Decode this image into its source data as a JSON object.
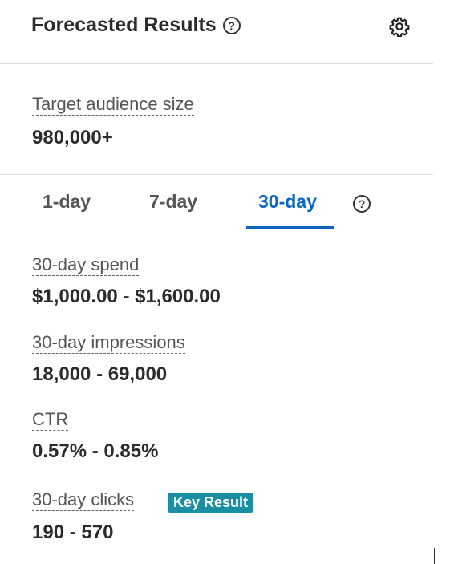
{
  "header": {
    "title": "Forecasted Results"
  },
  "audience": {
    "label": "Target audience size",
    "value": "980,000+"
  },
  "tabs": [
    {
      "label": "1-day",
      "active": false
    },
    {
      "label": "7-day",
      "active": false
    },
    {
      "label": "30-day",
      "active": true
    }
  ],
  "metrics": {
    "spend": {
      "label": "30-day spend",
      "value": "$1,000.00 - $1,600.00"
    },
    "impressions": {
      "label": "30-day impressions",
      "value": "18,000 - 69,000"
    },
    "ctr": {
      "label": "CTR",
      "value": "0.57% - 0.85%"
    },
    "clicks": {
      "label": "30-day clicks",
      "value": "190 - 570",
      "badge": "Key Result"
    }
  },
  "colors": {
    "accent": "#0a66c2",
    "badge": "#1a8fa3"
  }
}
